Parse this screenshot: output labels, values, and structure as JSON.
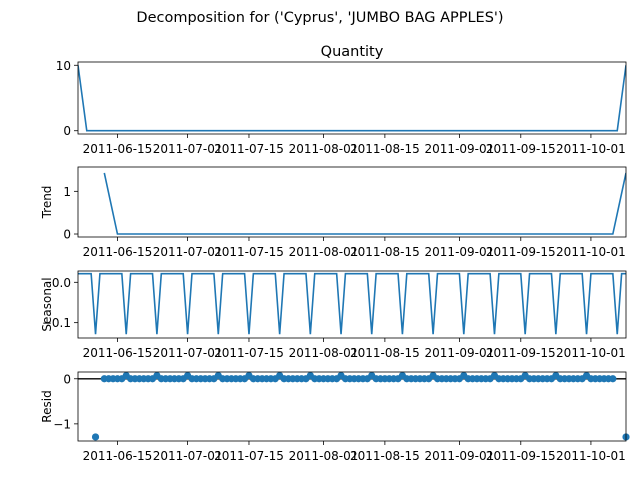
{
  "suptitle": "Decomposition for ('Cyprus', 'JUMBO BAG APPLES')",
  "colors": {
    "series": "#1f77b4",
    "axes": "#000000",
    "background": "#ffffff"
  },
  "x_axis": {
    "type": "date",
    "range": [
      "2011-06-06",
      "2011-10-09"
    ],
    "ticks": [
      "2011-06-15",
      "2011-07-01",
      "2011-07-15",
      "2011-08-01",
      "2011-08-15",
      "2011-09-01",
      "2011-09-15",
      "2011-10-01"
    ],
    "tick_labels": [
      "2011-06-15",
      "2011-07-01",
      "2011-07-15",
      "2011-08-01",
      "2011-08-15",
      "2011-09-01",
      "2011-09-15",
      "2011-10-01"
    ]
  },
  "chart_data": [
    {
      "type": "line",
      "title": "Quantity",
      "ylabel": "",
      "ylim": [
        -0.5,
        10.5
      ],
      "yticks": [
        0,
        10
      ],
      "series": [
        {
          "x_start": "2011-06-06",
          "x_end": "2011-10-09",
          "values": [
            10,
            0,
            "…",
            0,
            10
          ],
          "points": [
            [
              "2011-06-06",
              10
            ],
            [
              "2011-06-08",
              0
            ],
            [
              "2011-10-07",
              0
            ],
            [
              "2011-10-09",
              10
            ]
          ]
        }
      ]
    },
    {
      "type": "line",
      "title": "",
      "ylabel": "Trend",
      "ylim": [
        -0.07,
        1.57
      ],
      "yticks": [
        0,
        1
      ],
      "series": [
        {
          "points": [
            [
              "2011-06-12",
              1.43
            ],
            [
              "2011-06-15",
              0.0
            ],
            [
              "2011-10-06",
              0.0
            ],
            [
              "2011-10-09",
              1.43
            ]
          ]
        }
      ]
    },
    {
      "type": "line",
      "title": "",
      "ylabel": "Seasonal",
      "ylim": [
        -0.138,
        0.028
      ],
      "yticks": [
        0.0,
        -0.1
      ],
      "yticklabels": [
        "0.0",
        "−0.1"
      ],
      "period_days": 7,
      "pattern": {
        "high": 0.0214,
        "low": -0.1286,
        "first_dip": "2011-06-10"
      }
    },
    {
      "type": "scatter",
      "title": "",
      "ylabel": "Resid",
      "ylim": [
        -1.38,
        0.15
      ],
      "yticks": [
        0,
        -1
      ],
      "yticklabels": [
        "0",
        "−1"
      ],
      "baseline": 0,
      "points": [
        [
          "2011-06-10",
          -1.29
        ],
        [
          "2011-10-09",
          -1.29
        ]
      ],
      "regular": {
        "start": "2011-06-12",
        "end": "2011-10-06",
        "value": 0.0,
        "peak_value": 0.0714,
        "peak_first": "2011-06-17",
        "period_days": 7
      }
    }
  ]
}
